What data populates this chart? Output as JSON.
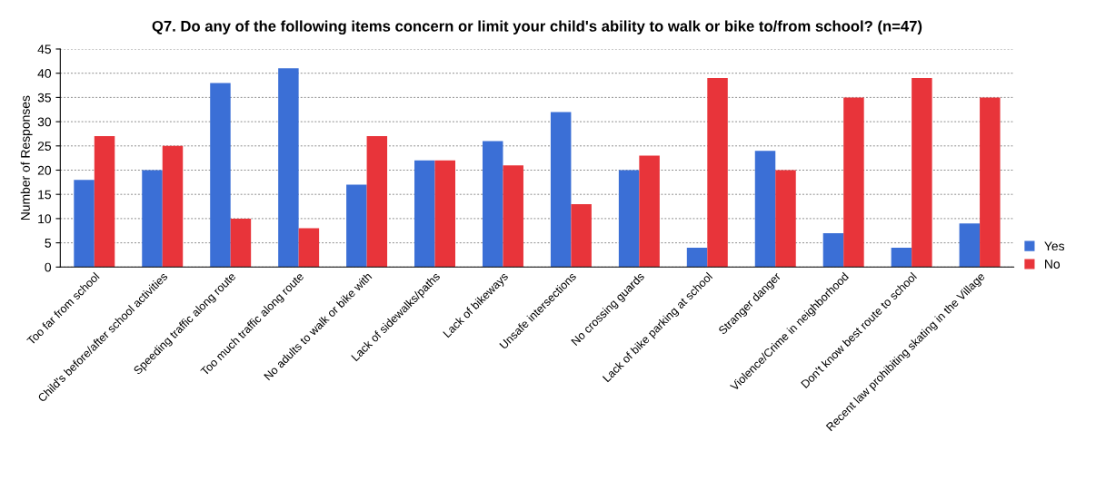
{
  "chart_data": {
    "type": "bar",
    "title": "Q7. Do any of the following items concern or limit your child's ability to walk or bike to/from school? (n=47)",
    "ylabel": "Number of Responses",
    "categories": [
      "Too far from school",
      "Child's before/after school activities",
      "Speeding traffic along route",
      "Too much traffic along route",
      "No adults to walk or bike with",
      "Lack of sidewalks/paths",
      "Lack of bikeways",
      "Unsafe intersections",
      "No crossing guards",
      "Lack of bike parking at school",
      "Stranger danger",
      "Violence/Crime in neighborhood",
      "Don't know best route to school",
      "Recent law prohibiting skating in the Village"
    ],
    "series": [
      {
        "name": "Yes",
        "color": "#3b6fd6",
        "values": [
          18,
          20,
          38,
          41,
          17,
          22,
          26,
          32,
          20,
          4,
          24,
          7,
          4,
          9
        ]
      },
      {
        "name": "No",
        "color": "#e8343a",
        "values": [
          27,
          25,
          10,
          8,
          27,
          22,
          21,
          13,
          23,
          39,
          20,
          35,
          39,
          35
        ]
      }
    ],
    "ylim": [
      0,
      45
    ],
    "yticks": [
      0,
      5,
      10,
      15,
      20,
      25,
      30,
      35,
      40,
      45
    ],
    "grid": "y",
    "legend": "right"
  }
}
